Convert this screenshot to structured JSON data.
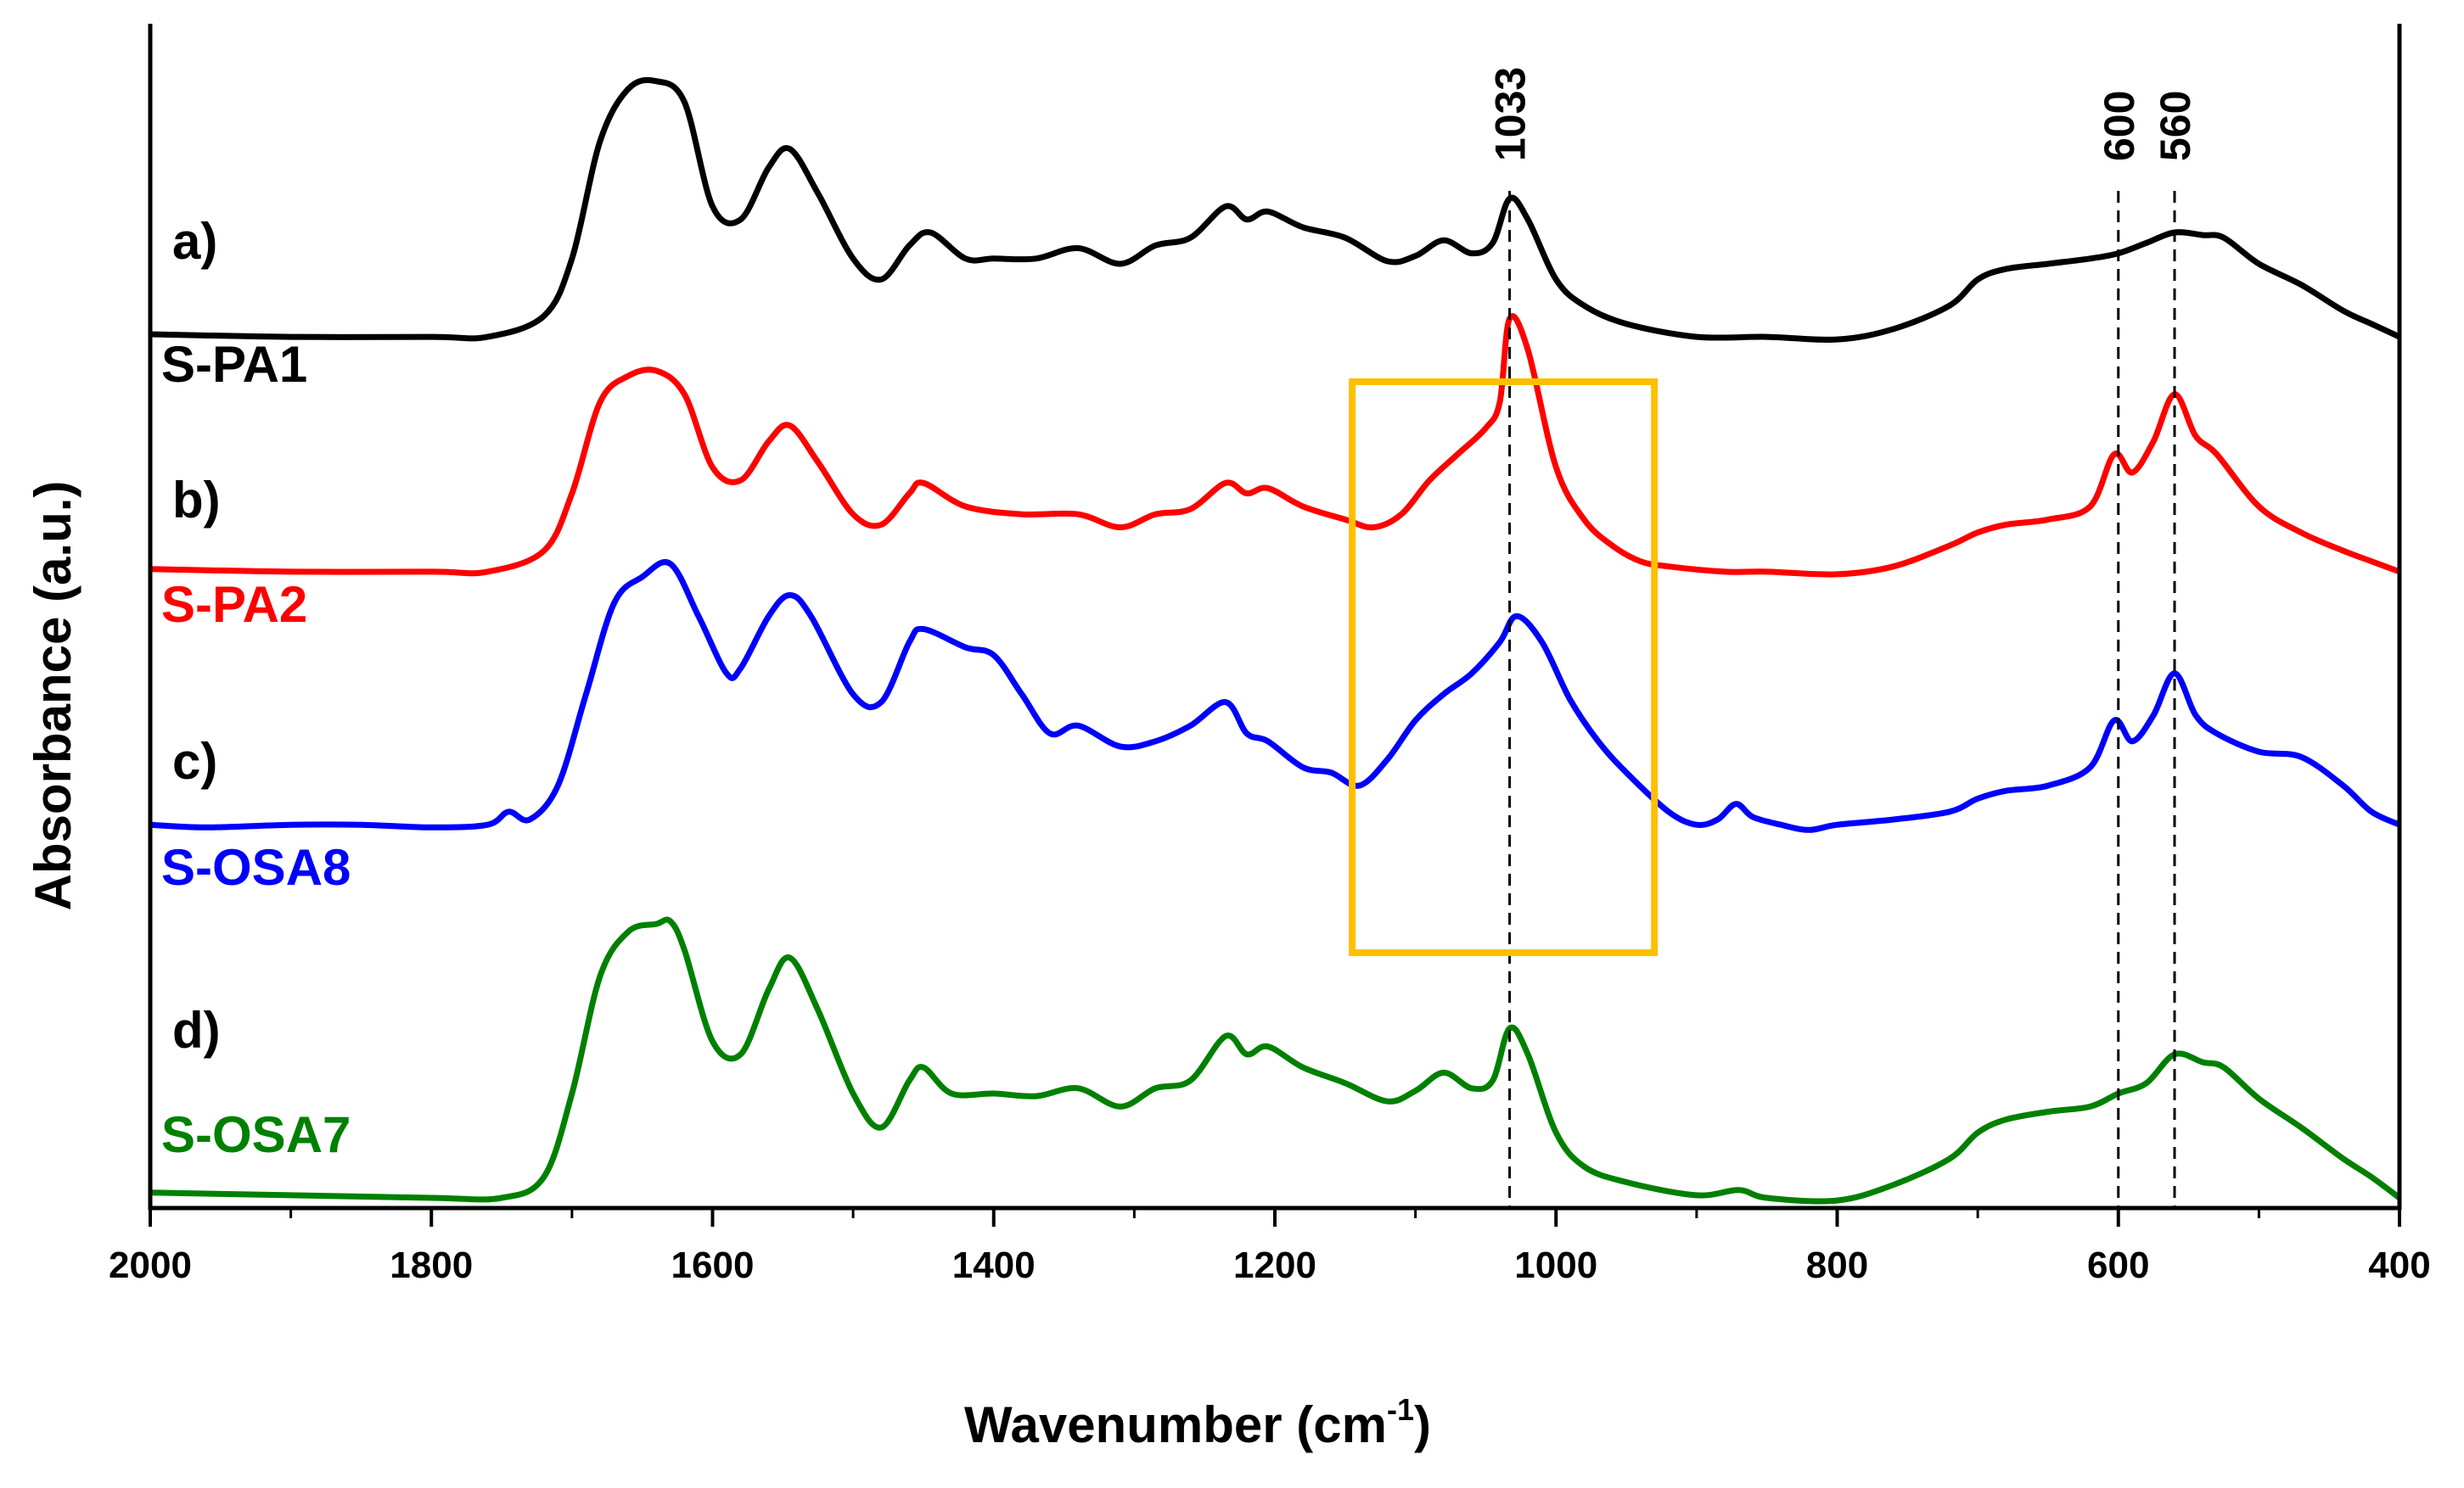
{
  "chart_data": {
    "type": "line",
    "xlabel": "Wavenumber (cm",
    "xlabel_sup": "-1",
    "xlabel_close": ")",
    "ylabel": "Absorbance (a.u.)",
    "xlim": [
      2000,
      400
    ],
    "x_reversed": true,
    "xticks": [
      "2000",
      "1800",
      "1600",
      "1400",
      "1200",
      "1000",
      "800",
      "600",
      "400"
    ],
    "xtick_values": [
      2000,
      1800,
      1600,
      1400,
      1200,
      1000,
      800,
      600,
      400
    ],
    "ylim": [
      0,
      4.5
    ],
    "y_ticks_shown": false,
    "grid": false,
    "series": [
      {
        "name": "S-PA1",
        "letter": "a)",
        "color": "#000000",
        "offset": 3.3,
        "points": [
          [
            2000,
            0.01
          ],
          [
            1900,
            0.0
          ],
          [
            1800,
            0.0
          ],
          [
            1760,
            0.0
          ],
          [
            1720,
            0.08
          ],
          [
            1700,
            0.3
          ],
          [
            1680,
            0.75
          ],
          [
            1660,
            0.95
          ],
          [
            1640,
            0.98
          ],
          [
            1620,
            0.9
          ],
          [
            1600,
            0.5
          ],
          [
            1580,
            0.45
          ],
          [
            1560,
            0.65
          ],
          [
            1545,
            0.72
          ],
          [
            1525,
            0.55
          ],
          [
            1500,
            0.3
          ],
          [
            1480,
            0.22
          ],
          [
            1460,
            0.35
          ],
          [
            1445,
            0.4
          ],
          [
            1420,
            0.3
          ],
          [
            1400,
            0.3
          ],
          [
            1370,
            0.3
          ],
          [
            1340,
            0.34
          ],
          [
            1310,
            0.28
          ],
          [
            1285,
            0.35
          ],
          [
            1260,
            0.38
          ],
          [
            1235,
            0.5
          ],
          [
            1220,
            0.45
          ],
          [
            1205,
            0.48
          ],
          [
            1180,
            0.42
          ],
          [
            1150,
            0.38
          ],
          [
            1120,
            0.29
          ],
          [
            1100,
            0.31
          ],
          [
            1080,
            0.37
          ],
          [
            1060,
            0.32
          ],
          [
            1045,
            0.36
          ],
          [
            1033,
            0.53
          ],
          [
            1020,
            0.45
          ],
          [
            1000,
            0.22
          ],
          [
            980,
            0.12
          ],
          [
            950,
            0.05
          ],
          [
            900,
            0.0
          ],
          [
            850,
            0.0
          ],
          [
            800,
            -0.01
          ],
          [
            760,
            0.03
          ],
          [
            720,
            0.12
          ],
          [
            700,
            0.22
          ],
          [
            680,
            0.26
          ],
          [
            650,
            0.28
          ],
          [
            620,
            0.3
          ],
          [
            600,
            0.32
          ],
          [
            580,
            0.36
          ],
          [
            560,
            0.4
          ],
          [
            540,
            0.39
          ],
          [
            525,
            0.38
          ],
          [
            500,
            0.28
          ],
          [
            470,
            0.2
          ],
          [
            440,
            0.1
          ],
          [
            420,
            0.05
          ],
          [
            400,
            0.0
          ]
        ]
      },
      {
        "name": "S-PA2",
        "letter": "b)",
        "color": "#ff0000",
        "offset": 2.4,
        "points": [
          [
            2000,
            0.01
          ],
          [
            1900,
            0.0
          ],
          [
            1800,
            0.0
          ],
          [
            1760,
            0.0
          ],
          [
            1720,
            0.08
          ],
          [
            1700,
            0.3
          ],
          [
            1680,
            0.65
          ],
          [
            1660,
            0.75
          ],
          [
            1640,
            0.77
          ],
          [
            1620,
            0.68
          ],
          [
            1600,
            0.4
          ],
          [
            1580,
            0.35
          ],
          [
            1560,
            0.5
          ],
          [
            1545,
            0.56
          ],
          [
            1525,
            0.42
          ],
          [
            1500,
            0.22
          ],
          [
            1480,
            0.18
          ],
          [
            1460,
            0.3
          ],
          [
            1450,
            0.34
          ],
          [
            1420,
            0.25
          ],
          [
            1380,
            0.22
          ],
          [
            1340,
            0.22
          ],
          [
            1310,
            0.17
          ],
          [
            1285,
            0.22
          ],
          [
            1260,
            0.24
          ],
          [
            1235,
            0.34
          ],
          [
            1220,
            0.3
          ],
          [
            1205,
            0.32
          ],
          [
            1180,
            0.25
          ],
          [
            1150,
            0.2
          ],
          [
            1130,
            0.17
          ],
          [
            1110,
            0.22
          ],
          [
            1090,
            0.35
          ],
          [
            1070,
            0.45
          ],
          [
            1050,
            0.55
          ],
          [
            1040,
            0.65
          ],
          [
            1033,
            0.97
          ],
          [
            1020,
            0.85
          ],
          [
            1000,
            0.4
          ],
          [
            980,
            0.2
          ],
          [
            960,
            0.1
          ],
          [
            940,
            0.04
          ],
          [
            920,
            0.02
          ],
          [
            880,
            0.0
          ],
          [
            850,
            0.0
          ],
          [
            800,
            -0.01
          ],
          [
            760,
            0.02
          ],
          [
            720,
            0.1
          ],
          [
            700,
            0.15
          ],
          [
            680,
            0.18
          ],
          [
            650,
            0.2
          ],
          [
            620,
            0.25
          ],
          [
            603,
            0.45
          ],
          [
            590,
            0.38
          ],
          [
            575,
            0.5
          ],
          [
            560,
            0.68
          ],
          [
            545,
            0.52
          ],
          [
            530,
            0.45
          ],
          [
            500,
            0.25
          ],
          [
            470,
            0.15
          ],
          [
            440,
            0.08
          ],
          [
            420,
            0.04
          ],
          [
            400,
            0.0
          ]
        ]
      },
      {
        "name": "S-OSA8",
        "letter": "c)",
        "color": "#0000ff",
        "offset": 1.43,
        "points": [
          [
            2000,
            0.0
          ],
          [
            1960,
            -0.01
          ],
          [
            1900,
            0.0
          ],
          [
            1850,
            0.0
          ],
          [
            1800,
            -0.01
          ],
          [
            1760,
            0.0
          ],
          [
            1745,
            0.05
          ],
          [
            1730,
            0.02
          ],
          [
            1710,
            0.15
          ],
          [
            1690,
            0.5
          ],
          [
            1670,
            0.85
          ],
          [
            1650,
            0.95
          ],
          [
            1630,
            1.0
          ],
          [
            1610,
            0.8
          ],
          [
            1590,
            0.58
          ],
          [
            1580,
            0.6
          ],
          [
            1560,
            0.8
          ],
          [
            1545,
            0.88
          ],
          [
            1530,
            0.8
          ],
          [
            1500,
            0.5
          ],
          [
            1480,
            0.47
          ],
          [
            1460,
            0.7
          ],
          [
            1450,
            0.75
          ],
          [
            1420,
            0.68
          ],
          [
            1400,
            0.65
          ],
          [
            1380,
            0.5
          ],
          [
            1360,
            0.35
          ],
          [
            1340,
            0.38
          ],
          [
            1310,
            0.3
          ],
          [
            1285,
            0.32
          ],
          [
            1260,
            0.38
          ],
          [
            1235,
            0.47
          ],
          [
            1220,
            0.35
          ],
          [
            1205,
            0.32
          ],
          [
            1180,
            0.22
          ],
          [
            1160,
            0.2
          ],
          [
            1140,
            0.15
          ],
          [
            1120,
            0.25
          ],
          [
            1100,
            0.4
          ],
          [
            1080,
            0.5
          ],
          [
            1060,
            0.58
          ],
          [
            1040,
            0.7
          ],
          [
            1028,
            0.8
          ],
          [
            1010,
            0.7
          ],
          [
            990,
            0.48
          ],
          [
            970,
            0.32
          ],
          [
            950,
            0.2
          ],
          [
            920,
            0.05
          ],
          [
            900,
            0.0
          ],
          [
            885,
            0.02
          ],
          [
            872,
            0.08
          ],
          [
            860,
            0.03
          ],
          [
            840,
            0.0
          ],
          [
            820,
            -0.02
          ],
          [
            800,
            0.0
          ],
          [
            760,
            0.02
          ],
          [
            720,
            0.05
          ],
          [
            700,
            0.1
          ],
          [
            680,
            0.13
          ],
          [
            650,
            0.15
          ],
          [
            620,
            0.22
          ],
          [
            603,
            0.4
          ],
          [
            590,
            0.32
          ],
          [
            575,
            0.42
          ],
          [
            560,
            0.58
          ],
          [
            545,
            0.42
          ],
          [
            530,
            0.35
          ],
          [
            500,
            0.28
          ],
          [
            470,
            0.26
          ],
          [
            440,
            0.15
          ],
          [
            420,
            0.05
          ],
          [
            400,
            0.0
          ]
        ]
      },
      {
        "name": "S-OSA7",
        "letter": "d)",
        "color": "#008000",
        "offset": 0.0,
        "points": [
          [
            2000,
            0.02
          ],
          [
            1900,
            0.01
          ],
          [
            1800,
            0.0
          ],
          [
            1750,
            0.0
          ],
          [
            1720,
            0.08
          ],
          [
            1700,
            0.4
          ],
          [
            1680,
            0.85
          ],
          [
            1660,
            1.02
          ],
          [
            1640,
            1.05
          ],
          [
            1630,
            1.06
          ],
          [
            1620,
            0.95
          ],
          [
            1600,
            0.6
          ],
          [
            1580,
            0.55
          ],
          [
            1560,
            0.8
          ],
          [
            1545,
            0.92
          ],
          [
            1525,
            0.72
          ],
          [
            1500,
            0.4
          ],
          [
            1480,
            0.27
          ],
          [
            1460,
            0.45
          ],
          [
            1450,
            0.5
          ],
          [
            1430,
            0.4
          ],
          [
            1400,
            0.4
          ],
          [
            1370,
            0.39
          ],
          [
            1340,
            0.42
          ],
          [
            1310,
            0.35
          ],
          [
            1285,
            0.42
          ],
          [
            1260,
            0.45
          ],
          [
            1235,
            0.62
          ],
          [
            1220,
            0.55
          ],
          [
            1205,
            0.58
          ],
          [
            1180,
            0.5
          ],
          [
            1150,
            0.44
          ],
          [
            1120,
            0.37
          ],
          [
            1100,
            0.41
          ],
          [
            1080,
            0.48
          ],
          [
            1060,
            0.42
          ],
          [
            1045,
            0.45
          ],
          [
            1033,
            0.65
          ],
          [
            1020,
            0.55
          ],
          [
            1000,
            0.25
          ],
          [
            980,
            0.12
          ],
          [
            950,
            0.06
          ],
          [
            900,
            0.01
          ],
          [
            870,
            0.03
          ],
          [
            850,
            0.0
          ],
          [
            800,
            -0.01
          ],
          [
            760,
            0.05
          ],
          [
            720,
            0.15
          ],
          [
            700,
            0.25
          ],
          [
            680,
            0.3
          ],
          [
            650,
            0.33
          ],
          [
            620,
            0.35
          ],
          [
            600,
            0.4
          ],
          [
            580,
            0.44
          ],
          [
            560,
            0.55
          ],
          [
            540,
            0.52
          ],
          [
            525,
            0.5
          ],
          [
            500,
            0.38
          ],
          [
            470,
            0.27
          ],
          [
            440,
            0.15
          ],
          [
            420,
            0.08
          ],
          [
            400,
            0.0
          ]
        ]
      }
    ],
    "reference_lines": [
      {
        "x": 1033,
        "label": "1033"
      },
      {
        "x": 600,
        "label": "600"
      },
      {
        "x": 560,
        "label": "560"
      }
    ],
    "highlight_box": {
      "x": [
        1145,
        930
      ],
      "color": "#ffbf00"
    }
  }
}
